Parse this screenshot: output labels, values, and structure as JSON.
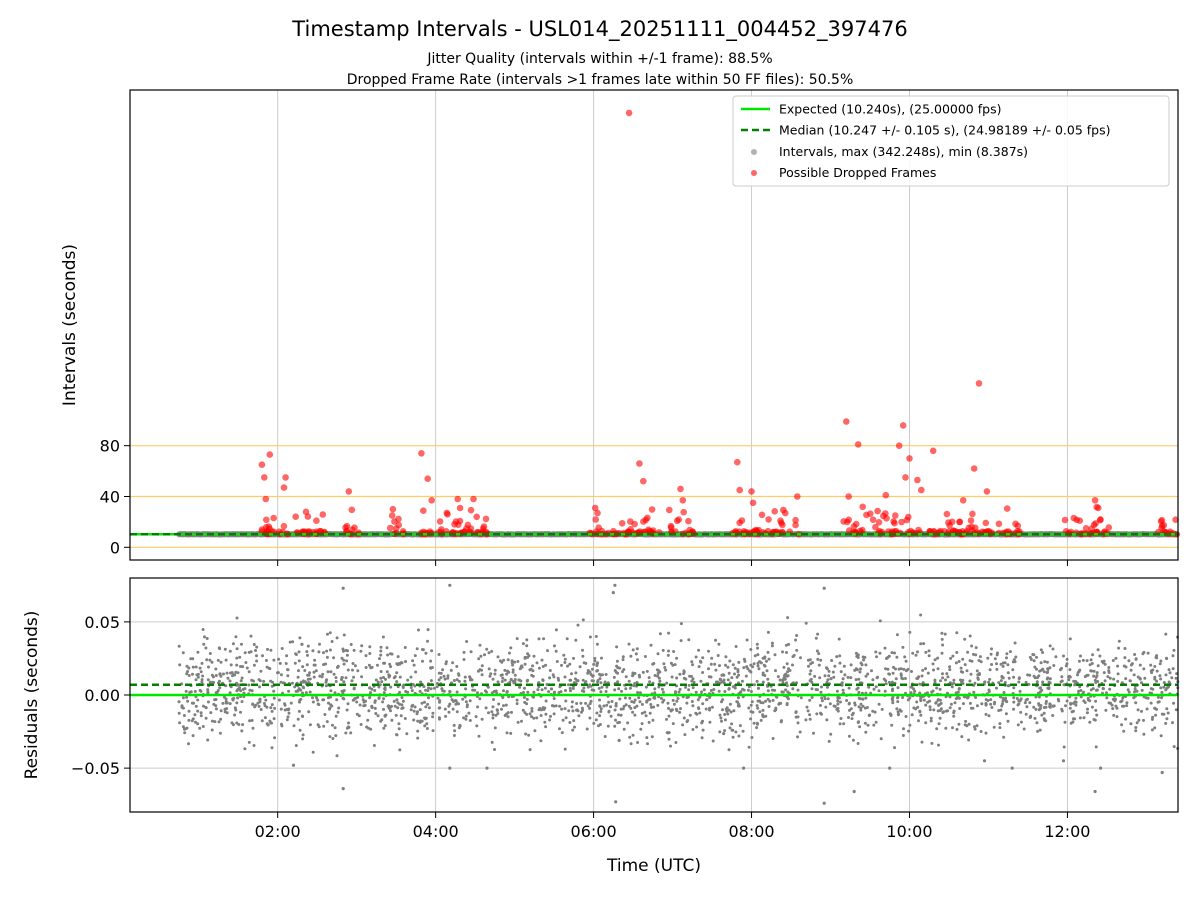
{
  "chart_data": {
    "type": "scatter",
    "title": "Timestamp Intervals - USL014_20251111_004452_397476",
    "subtitles": [
      "Jitter Quality (intervals within +/-1 frame): 88.5%",
      "Dropped Frame Rate (intervals >1 frames late within 50 FF files): 50.5%"
    ],
    "xlabel": "Time (UTC)",
    "x_ticks": [
      "02:00",
      "04:00",
      "06:00",
      "08:00",
      "10:00",
      "12:00"
    ],
    "x_tick_hours": [
      2,
      4,
      6,
      8,
      10,
      12
    ],
    "xlim_hours": [
      0.13,
      13.4
    ],
    "data_span_hours": [
      0.75,
      13.4
    ],
    "top_panel": {
      "ylabel": "Intervals (seconds)",
      "y_ticks": [
        "0",
        "40",
        "80"
      ],
      "y_tick_values": [
        0,
        40,
        80
      ],
      "ylim": [
        -10,
        360
      ],
      "horizontal_reference_lines": [
        0,
        40,
        80
      ],
      "expected_interval": 10.24,
      "median_interval": 10.247,
      "max_interval": 342.248,
      "min_interval": 8.387,
      "legend": [
        "Expected (10.240s), (25.00000 fps)",
        "Median (10.247 +/- 0.105 s), (24.98189 +/- 0.05 fps)",
        "Intervals, max (342.248s), min (8.387s)",
        "Possible Dropped Frames"
      ],
      "dropped_frame_clusters": [
        {
          "start_hour": 1.75,
          "end_hour": 2.6
        },
        {
          "start_hour": 2.85,
          "end_hour": 3.05
        },
        {
          "start_hour": 3.4,
          "end_hour": 3.6
        },
        {
          "start_hour": 3.8,
          "end_hour": 4.7
        },
        {
          "start_hour": 5.95,
          "end_hour": 6.85
        },
        {
          "start_hour": 6.95,
          "end_hour": 7.3
        },
        {
          "start_hour": 7.75,
          "end_hour": 8.6
        },
        {
          "start_hour": 9.15,
          "end_hour": 11.05
        },
        {
          "start_hour": 11.1,
          "end_hour": 11.4
        },
        {
          "start_hour": 11.95,
          "end_hour": 12.55
        },
        {
          "start_hour": 13.15,
          "end_hour": 13.4
        }
      ],
      "dropped_frame_peaks": [
        {
          "hour": 1.8,
          "value": 65
        },
        {
          "hour": 1.83,
          "value": 55
        },
        {
          "hour": 1.9,
          "value": 73
        },
        {
          "hour": 2.08,
          "value": 47
        },
        {
          "hour": 2.1,
          "value": 55
        },
        {
          "hour": 1.85,
          "value": 38
        },
        {
          "hour": 1.95,
          "value": 23
        },
        {
          "hour": 2.9,
          "value": 44
        },
        {
          "hour": 3.45,
          "value": 25
        },
        {
          "hour": 3.82,
          "value": 74
        },
        {
          "hour": 3.9,
          "value": 54
        },
        {
          "hour": 3.95,
          "value": 37
        },
        {
          "hour": 4.15,
          "value": 26
        },
        {
          "hour": 4.28,
          "value": 38
        },
        {
          "hour": 4.48,
          "value": 38
        },
        {
          "hour": 4.52,
          "value": 24
        },
        {
          "hour": 6.02,
          "value": 31
        },
        {
          "hour": 6.05,
          "value": 27
        },
        {
          "hour": 6.45,
          "value": 342
        },
        {
          "hour": 6.58,
          "value": 66
        },
        {
          "hour": 6.63,
          "value": 52
        },
        {
          "hour": 7.1,
          "value": 46
        },
        {
          "hour": 7.13,
          "value": 37
        },
        {
          "hour": 7.82,
          "value": 67
        },
        {
          "hour": 7.85,
          "value": 45
        },
        {
          "hour": 8.0,
          "value": 44
        },
        {
          "hour": 8.02,
          "value": 35
        },
        {
          "hour": 8.58,
          "value": 40
        },
        {
          "hour": 9.2,
          "value": 99
        },
        {
          "hour": 9.23,
          "value": 40
        },
        {
          "hour": 9.35,
          "value": 81
        },
        {
          "hour": 9.7,
          "value": 41
        },
        {
          "hour": 9.82,
          "value": 25
        },
        {
          "hour": 9.87,
          "value": 80
        },
        {
          "hour": 9.92,
          "value": 96
        },
        {
          "hour": 10.0,
          "value": 70
        },
        {
          "hour": 9.95,
          "value": 55
        },
        {
          "hour": 10.1,
          "value": 53
        },
        {
          "hour": 10.15,
          "value": 45
        },
        {
          "hour": 10.3,
          "value": 76
        },
        {
          "hour": 10.68,
          "value": 37
        },
        {
          "hour": 10.82,
          "value": 62
        },
        {
          "hour": 10.88,
          "value": 129
        },
        {
          "hour": 10.98,
          "value": 44
        },
        {
          "hour": 12.08,
          "value": 23
        },
        {
          "hour": 12.35,
          "value": 37
        },
        {
          "hour": 13.2,
          "value": 17
        }
      ]
    },
    "bottom_panel": {
      "ylabel": "Residuals (seconds)",
      "y_ticks": [
        "0.05",
        "0.00",
        "−0.05"
      ],
      "y_tick_values": [
        0.05,
        0.0,
        -0.05
      ],
      "ylim": [
        -0.08,
        0.08
      ],
      "expected_residual": 0.0,
      "median_residual": 0.007,
      "residual_spread": 0.03,
      "outliers": [
        {
          "hour": 2.83,
          "value": 0.073
        },
        {
          "hour": 4.18,
          "value": 0.075
        },
        {
          "hour": 6.25,
          "value": 0.07
        },
        {
          "hour": 6.27,
          "value": 0.075
        },
        {
          "hour": 8.92,
          "value": 0.073
        },
        {
          "hour": 6.28,
          "value": -0.073
        },
        {
          "hour": 8.92,
          "value": -0.074
        },
        {
          "hour": 9.3,
          "value": -0.066
        },
        {
          "hour": 12.35,
          "value": -0.066
        },
        {
          "hour": 2.83,
          "value": -0.064
        },
        {
          "hour": 2.2,
          "value": -0.048
        },
        {
          "hour": 4.18,
          "value": -0.05
        },
        {
          "hour": 4.65,
          "value": -0.05
        },
        {
          "hour": 7.9,
          "value": -0.05
        },
        {
          "hour": 9.75,
          "value": -0.05
        },
        {
          "hour": 11.3,
          "value": -0.05
        },
        {
          "hour": 13.2,
          "value": -0.053
        },
        {
          "hour": 11.95,
          "value": -0.045
        },
        {
          "hour": 10.95,
          "value": -0.045
        },
        {
          "hour": 12.42,
          "value": -0.05
        }
      ]
    },
    "colors": {
      "expected_line": "#00e600",
      "median_line": "#008000",
      "intervals_point": "#7f7f7f",
      "dropped_point": "#ff0000",
      "reference_line": "#ffcc66",
      "grid": "#cccccc"
    }
  }
}
